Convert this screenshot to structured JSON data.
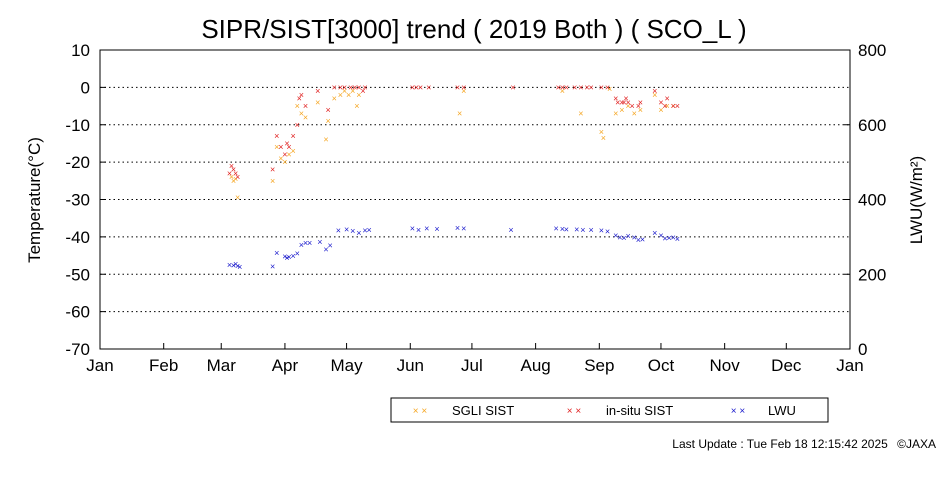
{
  "chart_data": {
    "type": "scatter",
    "title": "SIPR/SIST[3000] trend ( 2019 Both ) ( SCO_L )",
    "ylabel": "Temperature(°C)",
    "y2label": "LWU(W/m²)",
    "ylim": [
      -70,
      10
    ],
    "y2lim": [
      0,
      800
    ],
    "yticks": [
      "10",
      "0",
      "-10",
      "-20",
      "-30",
      "-40",
      "-50",
      "-60",
      "-70"
    ],
    "y2ticks": [
      "800",
      "600",
      "400",
      "200",
      "0"
    ],
    "xticks": [
      "Jan",
      "Feb",
      "Mar",
      "Apr",
      "May",
      "Jun",
      "Jul",
      "Aug",
      "Sep",
      "Oct",
      "Nov",
      "Dec",
      "Jan"
    ],
    "grid": "horizontal dotted",
    "legend_position": "bottom-right",
    "colors": {
      "sgli": "#f5a623",
      "insitu": "#e02020",
      "lwu": "#1a1acc"
    },
    "series": [
      {
        "name": "SGLI SIST",
        "axis": "left",
        "points": [
          [
            "2019-03-06",
            -24
          ],
          [
            "2019-03-07",
            -25
          ],
          [
            "2019-03-08",
            -24.5
          ],
          [
            "2019-03-09",
            -29.5
          ],
          [
            "2019-03-26",
            -25
          ],
          [
            "2019-03-28",
            -16
          ],
          [
            "2019-03-30",
            -19
          ],
          [
            "2019-04-01",
            -20
          ],
          [
            "2019-04-03",
            -18
          ],
          [
            "2019-04-05",
            -17
          ],
          [
            "2019-04-07",
            -5
          ],
          [
            "2019-04-09",
            -7
          ],
          [
            "2019-04-11",
            -8
          ],
          [
            "2019-04-17",
            -4
          ],
          [
            "2019-04-21",
            -14
          ],
          [
            "2019-04-22",
            -9
          ],
          [
            "2019-04-25",
            -3
          ],
          [
            "2019-04-28",
            -2
          ],
          [
            "2019-04-30",
            -1
          ],
          [
            "2019-05-02",
            -2
          ],
          [
            "2019-05-04",
            -1
          ],
          [
            "2019-05-06",
            -5
          ],
          [
            "2019-05-07",
            -2
          ],
          [
            "2019-06-25",
            -7
          ],
          [
            "2019-06-27",
            -1
          ],
          [
            "2019-08-14",
            -1
          ],
          [
            "2019-08-23",
            -7
          ],
          [
            "2019-09-02",
            -12
          ],
          [
            "2019-09-03",
            -13.5
          ],
          [
            "2019-09-06",
            -0.5
          ],
          [
            "2019-09-09",
            -7
          ],
          [
            "2019-09-12",
            -6
          ],
          [
            "2019-09-15",
            -5
          ],
          [
            "2019-09-18",
            -7
          ],
          [
            "2019-09-21",
            -6
          ],
          [
            "2019-09-28",
            -2
          ],
          [
            "2019-10-01",
            -6
          ],
          [
            "2019-10-04",
            -5
          ],
          [
            "2019-10-07",
            -5
          ]
        ]
      },
      {
        "name": "in-situ SIST",
        "axis": "left",
        "points": [
          [
            "2019-03-05",
            -23
          ],
          [
            "2019-03-06",
            -21
          ],
          [
            "2019-03-07",
            -22
          ],
          [
            "2019-03-08",
            -23
          ],
          [
            "2019-03-09",
            -24
          ],
          [
            "2019-03-26",
            -22
          ],
          [
            "2019-03-28",
            -13
          ],
          [
            "2019-03-30",
            -16
          ],
          [
            "2019-04-01",
            -18
          ],
          [
            "2019-04-02",
            -15
          ],
          [
            "2019-04-03",
            -16
          ],
          [
            "2019-04-05",
            -13
          ],
          [
            "2019-04-07",
            -10
          ],
          [
            "2019-04-08",
            -3
          ],
          [
            "2019-04-09",
            -2
          ],
          [
            "2019-04-11",
            -5
          ],
          [
            "2019-04-17",
            -1
          ],
          [
            "2019-04-22",
            -6
          ],
          [
            "2019-04-25",
            0
          ],
          [
            "2019-04-28",
            0
          ],
          [
            "2019-04-30",
            0
          ],
          [
            "2019-05-03",
            0
          ],
          [
            "2019-05-05",
            0
          ],
          [
            "2019-05-07",
            0
          ],
          [
            "2019-05-09",
            -1
          ],
          [
            "2019-05-10",
            0
          ],
          [
            "2019-06-02",
            0
          ],
          [
            "2019-06-04",
            0
          ],
          [
            "2019-06-06",
            0
          ],
          [
            "2019-06-10",
            0
          ],
          [
            "2019-06-24",
            0
          ],
          [
            "2019-06-27",
            0
          ],
          [
            "2019-07-21",
            0
          ],
          [
            "2019-08-12",
            0
          ],
          [
            "2019-08-14",
            0
          ],
          [
            "2019-08-16",
            0
          ],
          [
            "2019-08-20",
            0
          ],
          [
            "2019-08-23",
            0
          ],
          [
            "2019-08-26",
            0
          ],
          [
            "2019-08-28",
            0
          ],
          [
            "2019-09-02",
            0
          ],
          [
            "2019-09-05",
            0
          ],
          [
            "2019-09-09",
            -3
          ],
          [
            "2019-09-10",
            -4
          ],
          [
            "2019-09-12",
            -4
          ],
          [
            "2019-09-13",
            -4
          ],
          [
            "2019-09-14",
            -3
          ],
          [
            "2019-09-15",
            -4
          ],
          [
            "2019-09-17",
            -5
          ],
          [
            "2019-09-20",
            -5
          ],
          [
            "2019-09-21",
            -4
          ],
          [
            "2019-09-28",
            -1
          ],
          [
            "2019-10-01",
            -4
          ],
          [
            "2019-10-03",
            -5
          ],
          [
            "2019-10-04",
            -3
          ],
          [
            "2019-10-07",
            -5
          ],
          [
            "2019-10-09",
            -5
          ]
        ]
      },
      {
        "name": "LWU",
        "axis": "right",
        "points": [
          [
            "2019-03-05",
            225
          ],
          [
            "2019-03-07",
            223
          ],
          [
            "2019-03-08",
            228
          ],
          [
            "2019-03-09",
            222
          ],
          [
            "2019-03-10",
            220
          ],
          [
            "2019-03-26",
            221
          ],
          [
            "2019-03-28",
            257
          ],
          [
            "2019-04-01",
            248
          ],
          [
            "2019-04-02",
            243
          ],
          [
            "2019-04-03",
            246
          ],
          [
            "2019-04-05",
            249
          ],
          [
            "2019-04-07",
            256
          ],
          [
            "2019-04-09",
            278
          ],
          [
            "2019-04-11",
            283
          ],
          [
            "2019-04-13",
            284
          ],
          [
            "2019-04-18",
            286
          ],
          [
            "2019-04-21",
            266
          ],
          [
            "2019-04-23",
            277
          ],
          [
            "2019-04-27",
            317
          ],
          [
            "2019-05-01",
            320
          ],
          [
            "2019-05-04",
            316
          ],
          [
            "2019-05-07",
            311
          ],
          [
            "2019-05-10",
            317
          ],
          [
            "2019-05-12",
            318
          ],
          [
            "2019-06-02",
            323
          ],
          [
            "2019-06-05",
            318
          ],
          [
            "2019-06-09",
            322
          ],
          [
            "2019-06-14",
            321
          ],
          [
            "2019-06-24",
            324
          ],
          [
            "2019-06-27",
            322
          ],
          [
            "2019-07-20",
            319
          ],
          [
            "2019-08-11",
            322
          ],
          [
            "2019-08-14",
            321
          ],
          [
            "2019-08-16",
            320
          ],
          [
            "2019-08-21",
            320
          ],
          [
            "2019-08-24",
            318
          ],
          [
            "2019-08-28",
            319
          ],
          [
            "2019-09-02",
            317
          ],
          [
            "2019-09-05",
            315
          ],
          [
            "2019-09-09",
            304
          ],
          [
            "2019-09-11",
            298
          ],
          [
            "2019-09-13",
            297
          ],
          [
            "2019-09-15",
            302
          ],
          [
            "2019-09-18",
            298
          ],
          [
            "2019-09-20",
            291
          ],
          [
            "2019-09-22",
            293
          ],
          [
            "2019-09-28",
            310
          ],
          [
            "2019-10-01",
            304
          ],
          [
            "2019-10-03",
            296
          ],
          [
            "2019-10-05",
            297
          ],
          [
            "2019-10-07",
            298
          ],
          [
            "2019-10-09",
            294
          ]
        ]
      }
    ]
  },
  "footer": {
    "last_update": "Last Update : Tue Feb 18 12:15:42 2025",
    "credit": "©JAXA"
  }
}
